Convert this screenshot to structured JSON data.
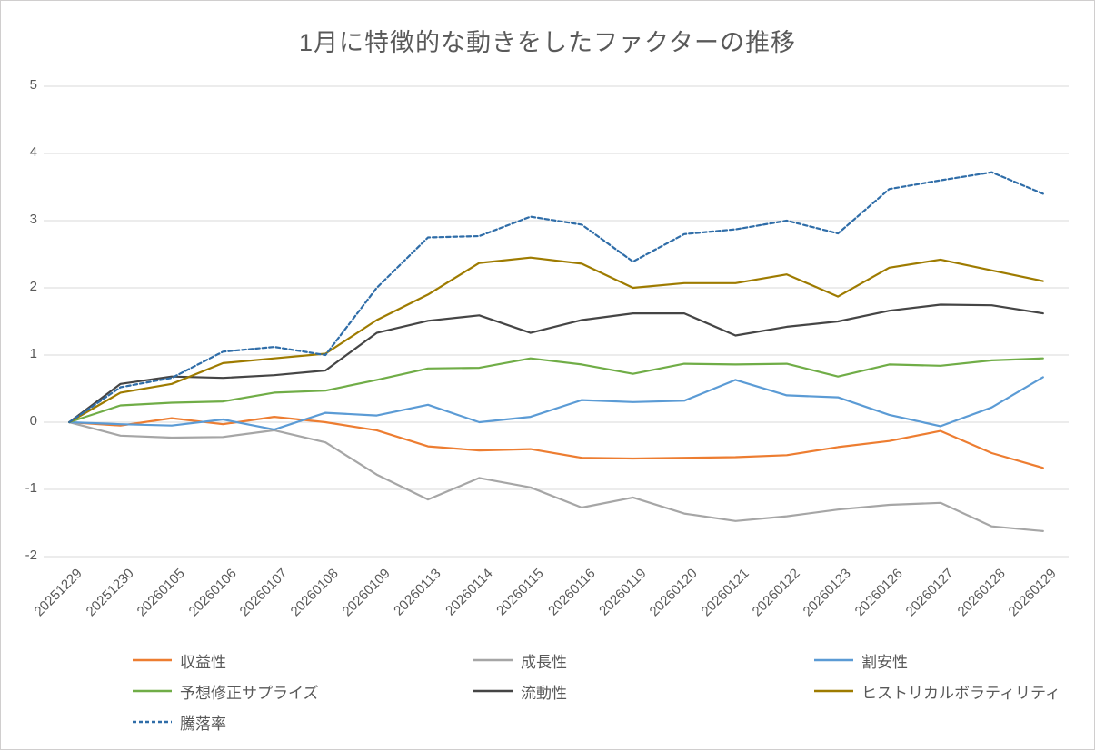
{
  "page": {
    "background": "#ffffff",
    "border_color": "#d0cece"
  },
  "chart_data": {
    "type": "line",
    "title": "1月に特徴的な動きをしたファクターの推移",
    "title_color": "#595959",
    "axis_label_color": "#595959",
    "gridline_color": "#d9d9d9",
    "grid": true,
    "legend_position": "bottom",
    "x_tick_rotation_deg": 45,
    "ylim": [
      -2,
      5
    ],
    "yticks": [
      5,
      4,
      3,
      2,
      1,
      0,
      -1,
      -2
    ],
    "categories": [
      "20251229",
      "20251230",
      "20260105",
      "20260106",
      "20260107",
      "20260108",
      "20260109",
      "20260113",
      "20260114",
      "20260115",
      "20260116",
      "20260119",
      "20260120",
      "20260121",
      "20260122",
      "20260123",
      "20260126",
      "20260127",
      "20260128",
      "20260129"
    ],
    "series": [
      {
        "name": "収益性",
        "color": "#ED7D31",
        "dash": false,
        "values": [
          0,
          -0.05,
          0.06,
          -0.03,
          0.08,
          0.0,
          -0.12,
          -0.36,
          -0.42,
          -0.4,
          -0.53,
          -0.54,
          -0.53,
          -0.52,
          -0.49,
          -0.37,
          -0.28,
          -0.13,
          -0.46,
          -0.68
        ]
      },
      {
        "name": "成長性",
        "color": "#A6A6A6",
        "dash": false,
        "values": [
          0,
          -0.2,
          -0.23,
          -0.22,
          -0.12,
          -0.3,
          -0.78,
          -1.15,
          -0.83,
          -0.97,
          -1.27,
          -1.12,
          -1.36,
          -1.47,
          -1.4,
          -1.3,
          -1.23,
          -1.2,
          -1.55,
          -1.62
        ]
      },
      {
        "name": "割安性",
        "color": "#5B9BD5",
        "dash": false,
        "values": [
          0,
          -0.03,
          -0.05,
          0.04,
          -0.11,
          0.14,
          0.1,
          0.26,
          0.0,
          0.08,
          0.33,
          0.3,
          0.32,
          0.63,
          0.4,
          0.37,
          0.11,
          -0.06,
          0.22,
          0.67
        ]
      },
      {
        "name": "予想修正サプライズ",
        "color": "#70AD47",
        "dash": false,
        "values": [
          0,
          0.25,
          0.29,
          0.31,
          0.44,
          0.47,
          0.63,
          0.8,
          0.81,
          0.95,
          0.86,
          0.72,
          0.87,
          0.86,
          0.87,
          0.68,
          0.86,
          0.84,
          0.92,
          0.95
        ]
      },
      {
        "name": "流動性",
        "color": "#454545",
        "dash": false,
        "values": [
          0,
          0.57,
          0.68,
          0.66,
          0.7,
          0.77,
          1.33,
          1.51,
          1.59,
          1.33,
          1.52,
          1.62,
          1.62,
          1.29,
          1.42,
          1.5,
          1.66,
          1.75,
          1.74,
          1.62
        ]
      },
      {
        "name": "ヒストリカルボラティリティ",
        "color": "#9E7B00",
        "dash": false,
        "values": [
          0,
          0.44,
          0.57,
          0.88,
          0.95,
          1.02,
          1.52,
          1.9,
          2.37,
          2.45,
          2.36,
          2.0,
          2.07,
          2.07,
          2.2,
          1.87,
          2.3,
          2.42,
          2.26,
          2.1
        ]
      },
      {
        "name": "騰落率",
        "color": "#2F6DA8",
        "dash": true,
        "values": [
          0,
          0.52,
          0.66,
          1.05,
          1.12,
          1.0,
          2.0,
          2.75,
          2.77,
          3.06,
          2.94,
          2.39,
          2.8,
          2.87,
          3.0,
          2.81,
          3.47,
          3.6,
          3.72,
          3.4
        ]
      }
    ]
  }
}
